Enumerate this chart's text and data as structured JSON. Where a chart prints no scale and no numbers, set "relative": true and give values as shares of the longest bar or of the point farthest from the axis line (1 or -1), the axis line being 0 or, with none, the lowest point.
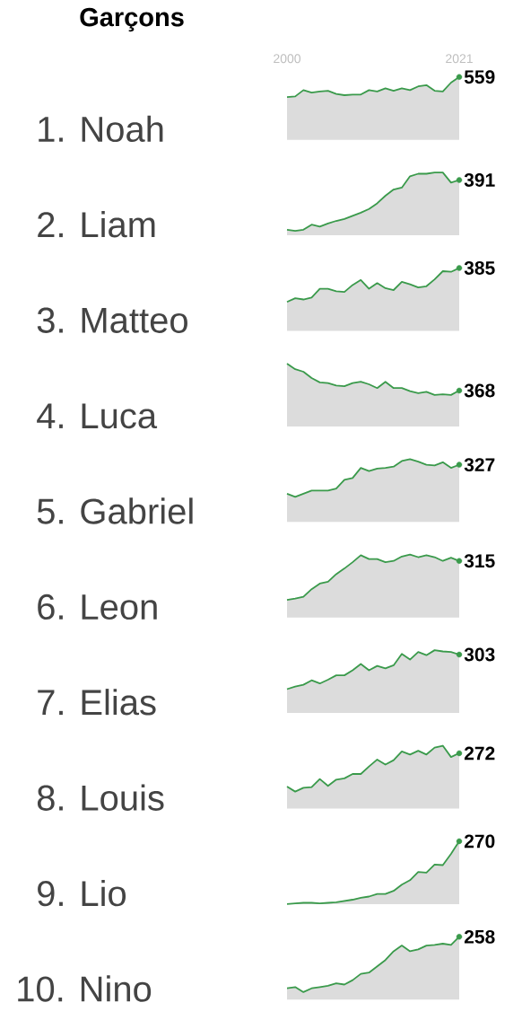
{
  "chart_data": [
    {
      "type": "area",
      "title": "Garçons",
      "ylabel": "1. Noah",
      "relative": true,
      "x": [
        2000,
        2001,
        2002,
        2003,
        2004,
        2005,
        2006,
        2007,
        2008,
        2009,
        2010,
        2011,
        2012,
        2013,
        2014,
        2015,
        2016,
        2017,
        2018,
        2019,
        2020,
        2021
      ],
      "xlim": [
        2000,
        2021
      ],
      "xticks": [
        2000,
        2021
      ],
      "tick_labels": "x",
      "color": "#3a9a4b",
      "values": [
        0.68,
        0.69,
        0.79,
        0.75,
        0.77,
        0.78,
        0.73,
        0.71,
        0.72,
        0.72,
        0.79,
        0.77,
        0.82,
        0.78,
        0.82,
        0.79,
        0.85,
        0.87,
        0.78,
        0.77,
        0.91,
        1
      ],
      "annotations": [
        "559"
      ]
    },
    {
      "type": "area",
      "ylabel": "2. Liam",
      "relative": true,
      "x": [
        2000,
        2001,
        2002,
        2003,
        2004,
        2005,
        2006,
        2007,
        2008,
        2009,
        2010,
        2011,
        2012,
        2013,
        2014,
        2015,
        2016,
        2017,
        2018,
        2019,
        2020,
        2021
      ],
      "xlim": [
        2000,
        2021
      ],
      "xticks": [
        2000,
        2021
      ],
      "tick_labels": false,
      "color": "#3a9a4b",
      "values": [
        0.09,
        0.07,
        0.09,
        0.17,
        0.14,
        0.19,
        0.23,
        0.26,
        0.31,
        0.36,
        0.42,
        0.51,
        0.63,
        0.73,
        0.76,
        0.94,
        0.98,
        0.98,
        1,
        1,
        0.84,
        0.88
      ],
      "annotations": [
        "391"
      ]
    },
    {
      "type": "area",
      "ylabel": "3. Matteo",
      "relative": true,
      "x": [
        2000,
        2001,
        2002,
        2003,
        2004,
        2005,
        2006,
        2007,
        2008,
        2009,
        2010,
        2011,
        2012,
        2013,
        2014,
        2015,
        2016,
        2017,
        2018,
        2019,
        2020,
        2021
      ],
      "xlim": [
        2000,
        2021
      ],
      "xticks": [
        2000,
        2021
      ],
      "tick_labels": false,
      "color": "#3a9a4b",
      "values": [
        0.46,
        0.52,
        0.5,
        0.53,
        0.67,
        0.67,
        0.63,
        0.62,
        0.73,
        0.81,
        0.67,
        0.76,
        0.68,
        0.65,
        0.78,
        0.74,
        0.69,
        0.71,
        0.82,
        0.95,
        0.94,
        1
      ],
      "annotations": [
        "385"
      ]
    },
    {
      "type": "area",
      "ylabel": "4. Luca",
      "relative": true,
      "x": [
        2000,
        2001,
        2002,
        2003,
        2004,
        2005,
        2006,
        2007,
        2008,
        2009,
        2010,
        2011,
        2012,
        2013,
        2014,
        2015,
        2016,
        2017,
        2018,
        2019,
        2020,
        2021
      ],
      "xlim": [
        2000,
        2021
      ],
      "xticks": [
        2000,
        2021
      ],
      "tick_labels": false,
      "color": "#3a9a4b",
      "values": [
        1,
        0.91,
        0.87,
        0.77,
        0.7,
        0.69,
        0.65,
        0.64,
        0.69,
        0.71,
        0.67,
        0.61,
        0.71,
        0.61,
        0.61,
        0.56,
        0.53,
        0.55,
        0.5,
        0.51,
        0.5,
        0.57
      ],
      "annotations": [
        "368"
      ]
    },
    {
      "type": "area",
      "ylabel": "5. Gabriel",
      "relative": true,
      "x": [
        2000,
        2001,
        2002,
        2003,
        2004,
        2005,
        2006,
        2007,
        2008,
        2009,
        2010,
        2011,
        2012,
        2013,
        2014,
        2015,
        2016,
        2017,
        2018,
        2019,
        2020,
        2021
      ],
      "xlim": [
        2000,
        2021
      ],
      "xticks": [
        2000,
        2021
      ],
      "tick_labels": false,
      "color": "#3a9a4b",
      "values": [
        0.45,
        0.4,
        0.45,
        0.5,
        0.5,
        0.5,
        0.53,
        0.67,
        0.7,
        0.86,
        0.81,
        0.85,
        0.86,
        0.88,
        0.97,
        1,
        0.96,
        0.91,
        0.9,
        0.95,
        0.86,
        0.91
      ],
      "annotations": [
        "327"
      ]
    },
    {
      "type": "area",
      "ylabel": "6. Leon",
      "relative": true,
      "x": [
        2000,
        2001,
        2002,
        2003,
        2004,
        2005,
        2006,
        2007,
        2008,
        2009,
        2010,
        2011,
        2012,
        2013,
        2014,
        2015,
        2016,
        2017,
        2018,
        2019,
        2020,
        2021
      ],
      "xlim": [
        2000,
        2021
      ],
      "xticks": [
        2000,
        2021
      ],
      "tick_labels": false,
      "color": "#3a9a4b",
      "values": [
        0.28,
        0.3,
        0.33,
        0.45,
        0.54,
        0.57,
        0.69,
        0.78,
        0.88,
        0.99,
        0.93,
        0.93,
        0.88,
        0.9,
        0.97,
        1,
        0.96,
        0.99,
        0.96,
        0.9,
        0.95,
        0.9
      ],
      "annotations": [
        "315"
      ]
    },
    {
      "type": "area",
      "ylabel": "7. Elias",
      "relative": true,
      "x": [
        2000,
        2001,
        2002,
        2003,
        2004,
        2005,
        2006,
        2007,
        2008,
        2009,
        2010,
        2011,
        2012,
        2013,
        2014,
        2015,
        2016,
        2017,
        2018,
        2019,
        2020,
        2021
      ],
      "xlim": [
        2000,
        2021
      ],
      "xticks": [
        2000,
        2021
      ],
      "tick_labels": false,
      "color": "#3a9a4b",
      "values": [
        0.38,
        0.42,
        0.45,
        0.52,
        0.47,
        0.53,
        0.6,
        0.6,
        0.68,
        0.78,
        0.68,
        0.75,
        0.71,
        0.76,
        0.94,
        0.85,
        0.97,
        0.92,
        1,
        0.98,
        0.97,
        0.93
      ],
      "annotations": [
        "303"
      ]
    },
    {
      "type": "area",
      "ylabel": "8. Louis",
      "relative": true,
      "x": [
        2000,
        2001,
        2002,
        2003,
        2004,
        2005,
        2006,
        2007,
        2008,
        2009,
        2010,
        2011,
        2012,
        2013,
        2014,
        2015,
        2016,
        2017,
        2018,
        2019,
        2020,
        2021
      ],
      "xlim": [
        2000,
        2021
      ],
      "xticks": [
        2000,
        2021
      ],
      "tick_labels": false,
      "color": "#3a9a4b",
      "values": [
        0.35,
        0.27,
        0.33,
        0.34,
        0.47,
        0.36,
        0.46,
        0.48,
        0.55,
        0.55,
        0.67,
        0.78,
        0.7,
        0.77,
        0.91,
        0.86,
        0.92,
        0.86,
        0.97,
        1,
        0.82,
        0.88
      ],
      "annotations": [
        "272"
      ]
    },
    {
      "type": "area",
      "ylabel": "9. Lio",
      "relative": true,
      "x": [
        2000,
        2001,
        2002,
        2003,
        2004,
        2005,
        2006,
        2007,
        2008,
        2009,
        2010,
        2011,
        2012,
        2013,
        2014,
        2015,
        2016,
        2017,
        2018,
        2019,
        2020,
        2021
      ],
      "xlim": [
        2000,
        2021
      ],
      "xticks": [
        2000,
        2021
      ],
      "tick_labels": false,
      "color": "#3a9a4b",
      "values": [
        0,
        0.01,
        0.02,
        0.02,
        0.01,
        0.02,
        0.03,
        0.05,
        0.07,
        0.1,
        0.12,
        0.16,
        0.16,
        0.21,
        0.31,
        0.38,
        0.51,
        0.5,
        0.63,
        0.62,
        0.8,
        1
      ],
      "annotations": [
        "270"
      ]
    },
    {
      "type": "area",
      "ylabel": "10. Nino",
      "relative": true,
      "x": [
        2000,
        2001,
        2002,
        2003,
        2004,
        2005,
        2006,
        2007,
        2008,
        2009,
        2010,
        2011,
        2012,
        2013,
        2014,
        2015,
        2016,
        2017,
        2018,
        2019,
        2020,
        2021
      ],
      "xlim": [
        2000,
        2021
      ],
      "xticks": [
        2000,
        2021
      ],
      "tick_labels": false,
      "color": "#3a9a4b",
      "values": [
        0.18,
        0.2,
        0.12,
        0.18,
        0.2,
        0.22,
        0.26,
        0.24,
        0.31,
        0.41,
        0.43,
        0.53,
        0.63,
        0.77,
        0.86,
        0.77,
        0.8,
        0.86,
        0.87,
        0.89,
        0.87,
        1
      ],
      "annotations": [
        "258"
      ]
    }
  ]
}
